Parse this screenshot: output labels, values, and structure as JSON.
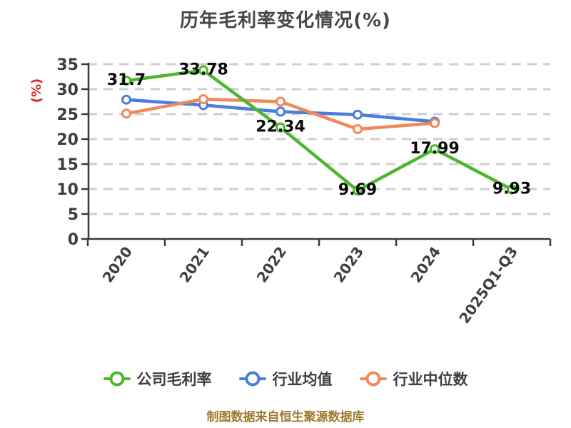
{
  "title": "历年毛利率变化情况(%)",
  "caption": "制图数据来自恒生聚源数据库",
  "colors": {
    "title_text": "#464646",
    "axis_line": "#3a3a3a",
    "tick_label": "#3d3d3d",
    "grid_line": "#cfcfcf",
    "data_label": "#0a0a0a",
    "legend_text": "#3e3e3e",
    "caption_text": "#9d7b2e",
    "ylabel_text": "#e02222",
    "marker_fill": "#ffffff",
    "background": "#ffffff"
  },
  "chart_data": {
    "type": "line",
    "title": "历年毛利率变化情况(%)",
    "categories": [
      "2020",
      "2021",
      "2022",
      "2023",
      "2024",
      "2025Q1-Q3"
    ],
    "series": [
      {
        "name": "公司毛利率",
        "color": "#4bb82c",
        "values": [
          31.7,
          33.78,
          22.34,
          9.69,
          17.99,
          9.93
        ],
        "labels": [
          "31.7",
          "33.78",
          "22.34",
          "9.69",
          "17.99",
          "9.93"
        ]
      },
      {
        "name": "行业均值",
        "color": "#4a7de0",
        "values": [
          27.9,
          26.8,
          25.5,
          24.9,
          23.5,
          null
        ],
        "labels": null
      },
      {
        "name": "行业中位数",
        "color": "#f0885a",
        "values": [
          25.1,
          28.0,
          27.5,
          22.0,
          23.2,
          null
        ],
        "labels": null
      }
    ],
    "xlabel": "",
    "ylabel": "(%)",
    "ylim": [
      0,
      35
    ],
    "yticks": [
      0,
      5,
      10,
      15,
      20,
      25,
      30,
      35
    ],
    "grid": "horizontal-dashed",
    "legend_position": "bottom",
    "x_label_rotation": -55
  }
}
